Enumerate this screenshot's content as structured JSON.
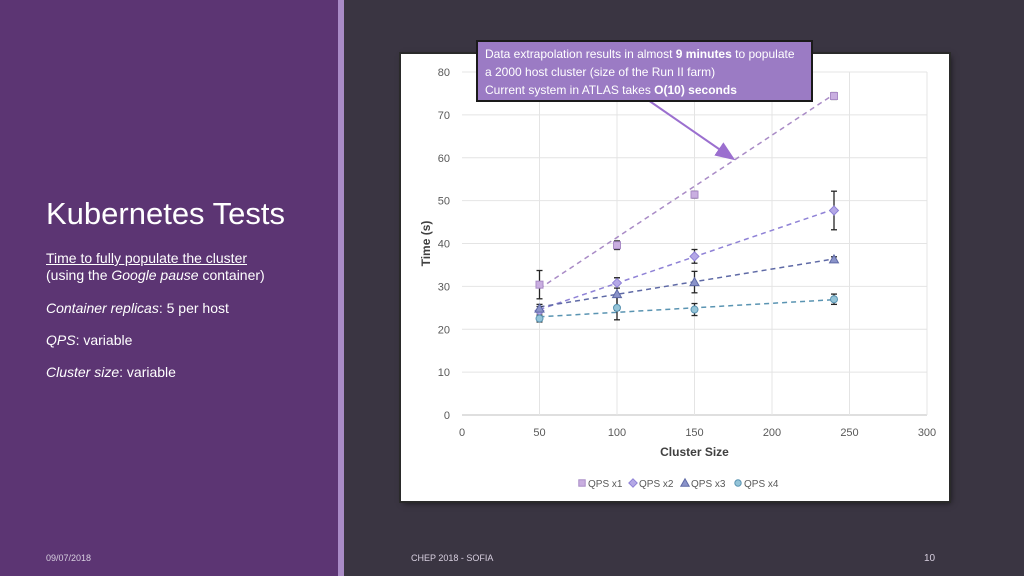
{
  "slide": {
    "title": "Kubernetes Tests",
    "description": {
      "line1": "Time to fully populate the cluster",
      "line2_prefix": "(using the ",
      "line2_italic": "Google pause",
      "line2_suffix": " container)",
      "replicas_label": "Container replicas",
      "replicas_value": ": 5 per host",
      "qps_label": "QPS",
      "qps_value": ": variable",
      "cluster_label": "Cluster size",
      "cluster_value": ": variable"
    },
    "footer": {
      "date": "09/07/2018",
      "event": "CHEP 2018 - SOFIA",
      "page": "10"
    },
    "callout": {
      "part1": "Data extrapolation results in almost ",
      "bold1": "9 minutes",
      "part2": " to populate a 2000 host cluster (size of the Run II farm)",
      "part3": "Current system in ATLAS takes ",
      "bold2": "O(10) seconds"
    },
    "colors": {
      "panel": "#5c3573",
      "stripe": "#a98bc6",
      "background": "#3a3542",
      "callout": "#9b7bc4"
    }
  },
  "chart_data": {
    "type": "scatter",
    "xlabel": "Cluster Size",
    "ylabel": "Time (s)",
    "xlim": [
      0,
      300
    ],
    "ylim": [
      0,
      80
    ],
    "xticks": [
      0,
      50,
      100,
      150,
      200,
      250,
      300
    ],
    "yticks": [
      0,
      10,
      20,
      30,
      40,
      50,
      60,
      70,
      80
    ],
    "grid": true,
    "legend_position": "bottom",
    "trendlines": "linear, dashed",
    "series": [
      {
        "name": "QPS x1",
        "marker": "square",
        "color": "#a98bc6",
        "fill": "#c9aee0",
        "x": [
          50,
          100,
          150,
          240
        ],
        "y": [
          30.4,
          39.6,
          51.4,
          74.4
        ],
        "err": [
          3.3,
          1.0,
          0.8,
          0.8
        ],
        "trend": [
          [
            50,
            29.5
          ],
          [
            240,
            74.8
          ]
        ]
      },
      {
        "name": "QPS x2",
        "marker": "diamond",
        "color": "#8f82d6",
        "fill": "#b4a8e6",
        "x": [
          50,
          100,
          150,
          240
        ],
        "y": [
          24.3,
          30.8,
          37.0,
          47.7
        ],
        "err": [
          1.0,
          1.2,
          1.6,
          4.5
        ],
        "trend": [
          [
            50,
            24.6
          ],
          [
            240,
            48.0
          ]
        ]
      },
      {
        "name": "QPS x3",
        "marker": "triangle",
        "color": "#5f6aa6",
        "fill": "#8a93c9",
        "x": [
          50,
          100,
          150,
          240
        ],
        "y": [
          24.8,
          28.2,
          31.0,
          36.3
        ],
        "err": [
          1.0,
          3.8,
          2.5,
          0.6
        ],
        "trend": [
          [
            50,
            25.2
          ],
          [
            240,
            36.4
          ]
        ]
      },
      {
        "name": "QPS x4",
        "marker": "circle",
        "color": "#5a94b2",
        "fill": "#94c4d8",
        "x": [
          50,
          100,
          150,
          240
        ],
        "y": [
          22.5,
          25.0,
          24.6,
          27.0
        ],
        "err": [
          0.8,
          2.8,
          1.4,
          1.2
        ],
        "trend": [
          [
            50,
            22.9
          ],
          [
            240,
            26.9
          ]
        ]
      }
    ]
  }
}
